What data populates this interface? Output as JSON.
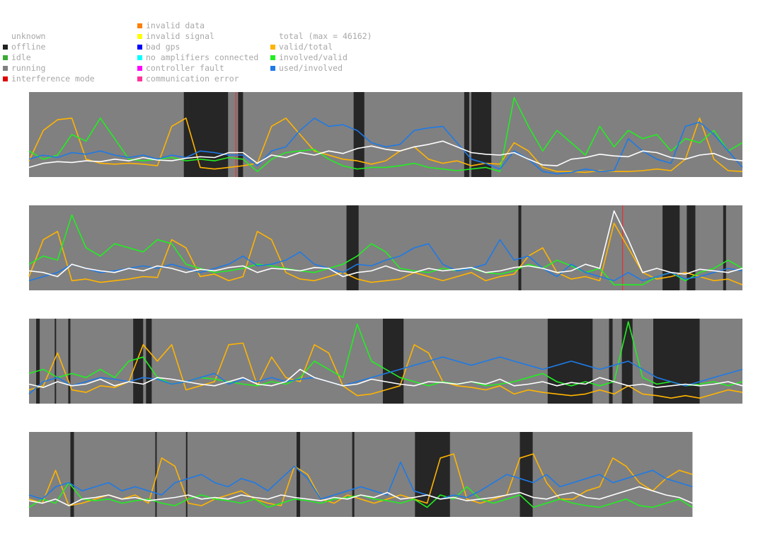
{
  "legend": {
    "status": [
      {
        "label": "unknown",
        "color": "none"
      },
      {
        "label": "offline",
        "color": "#222222"
      },
      {
        "label": "idle",
        "color": "#3aaa35"
      },
      {
        "label": "running",
        "color": "#808080"
      },
      {
        "label": "interference mode",
        "color": "#e00000"
      }
    ],
    "errors": [
      {
        "label": "invalid data",
        "color": "#ff7f00"
      },
      {
        "label": "invalid signal",
        "color": "#ffff00"
      },
      {
        "label": "bad gps",
        "color": "#0000ff"
      },
      {
        "label": "no amplifiers connected",
        "color": "#00ffff"
      },
      {
        "label": "controller fault",
        "color": "#ff00ff"
      },
      {
        "label": "communication error",
        "color": "#ff3399"
      }
    ],
    "metrics": [
      {
        "label": "total (max = 46162)",
        "color": "none"
      },
      {
        "label": "valid/total",
        "color": "#ffb400"
      },
      {
        "label": "involved/valid",
        "color": "#22ee22"
      },
      {
        "label": "used/involved",
        "color": "#1e7ae6"
      }
    ]
  },
  "chart_data": {
    "type": "line",
    "series": [
      {
        "name": "total (max = 46162)",
        "color": "#ffffff"
      },
      {
        "name": "valid/total",
        "color": "#ffb400"
      },
      {
        "name": "involved/valid",
        "color": "#22ee22"
      },
      {
        "name": "used/involved",
        "color": "#1e7ae6"
      }
    ],
    "state_colors": {
      "running": "#808080",
      "offline": "#262626",
      "interference": "#ff2020"
    },
    "rows": [
      {
        "span": [
          0,
          1
        ],
        "offline": [
          [
            0.217,
            0.279
          ],
          [
            0.293,
            0.3
          ],
          [
            0.455,
            0.47
          ],
          [
            0.61,
            0.617
          ],
          [
            0.62,
            0.648
          ]
        ],
        "interference": [
          0.29
        ],
        "series": {
          "total": [
            0.1,
            0.15,
            0.17,
            0.16,
            0.18,
            0.17,
            0.2,
            0.18,
            0.22,
            0.19,
            0.18,
            0.21,
            0.23,
            0.22,
            0.28,
            0.28,
            0.15,
            0.25,
            0.22,
            0.28,
            0.25,
            0.3,
            0.27,
            0.33,
            0.36,
            0.32,
            0.3,
            0.35,
            0.38,
            0.42,
            0.35,
            0.28,
            0.26,
            0.25,
            0.28,
            0.2,
            0.13,
            0.12,
            0.2,
            0.22,
            0.26,
            0.24,
            0.23,
            0.3,
            0.28,
            0.22,
            0.2,
            0.25,
            0.27,
            0.2,
            0.18
          ],
          "valid": [
            0.18,
            0.55,
            0.68,
            0.7,
            0.2,
            0.15,
            0.14,
            0.15,
            0.14,
            0.12,
            0.6,
            0.7,
            0.1,
            0.08,
            0.1,
            0.12,
            0.15,
            0.6,
            0.7,
            0.5,
            0.3,
            0.25,
            0.2,
            0.18,
            0.14,
            0.18,
            0.3,
            0.35,
            0.2,
            0.15,
            0.18,
            0.12,
            0.15,
            0.14,
            0.4,
            0.3,
            0.1,
            0.05,
            0.05,
            0.04,
            0.06,
            0.05,
            0.05,
            0.06,
            0.08,
            0.06,
            0.2,
            0.7,
            0.2,
            0.06,
            0.05
          ],
          "involved": [
            0.3,
            0.2,
            0.25,
            0.5,
            0.42,
            0.7,
            0.45,
            0.2,
            0.18,
            0.2,
            0.22,
            0.18,
            0.2,
            0.18,
            0.22,
            0.2,
            0.05,
            0.2,
            0.28,
            0.3,
            0.32,
            0.2,
            0.12,
            0.08,
            0.1,
            0.1,
            0.12,
            0.15,
            0.1,
            0.08,
            0.06,
            0.08,
            0.1,
            0.05,
            0.95,
            0.6,
            0.3,
            0.55,
            0.4,
            0.25,
            0.6,
            0.35,
            0.55,
            0.45,
            0.5,
            0.3,
            0.45,
            0.4,
            0.55,
            0.3,
            0.4
          ],
          "used": [
            0.2,
            0.25,
            0.22,
            0.28,
            0.26,
            0.3,
            0.25,
            0.22,
            0.25,
            0.2,
            0.25,
            0.22,
            0.3,
            0.28,
            0.25,
            0.25,
            0.12,
            0.3,
            0.35,
            0.55,
            0.7,
            0.6,
            0.62,
            0.55,
            0.4,
            0.35,
            0.38,
            0.55,
            0.58,
            0.6,
            0.4,
            0.2,
            0.15,
            0.08,
            0.3,
            0.2,
            0.05,
            0.02,
            0.04,
            0.08,
            0.05,
            0.06,
            0.45,
            0.3,
            0.2,
            0.15,
            0.6,
            0.65,
            0.5,
            0.3,
            0.1
          ]
        }
      },
      {
        "span": [
          0,
          1
        ],
        "offline": [
          [
            0.445,
            0.462
          ],
          [
            0.686,
            0.69
          ],
          [
            0.888,
            0.912
          ],
          [
            0.922,
            0.934
          ],
          [
            0.973,
            0.977
          ]
        ],
        "interference": [
          0.832
        ],
        "series": {
          "total": [
            0.22,
            0.2,
            0.15,
            0.3,
            0.25,
            0.22,
            0.2,
            0.25,
            0.22,
            0.28,
            0.25,
            0.2,
            0.24,
            0.22,
            0.26,
            0.28,
            0.2,
            0.25,
            0.24,
            0.22,
            0.26,
            0.25,
            0.15,
            0.2,
            0.22,
            0.28,
            0.22,
            0.2,
            0.25,
            0.22,
            0.24,
            0.26,
            0.2,
            0.22,
            0.26,
            0.28,
            0.25,
            0.2,
            0.22,
            0.3,
            0.25,
            0.95,
            0.6,
            0.2,
            0.25,
            0.2,
            0.18,
            0.24,
            0.22,
            0.2,
            0.25
          ],
          "valid": [
            0.15,
            0.6,
            0.7,
            0.1,
            0.12,
            0.08,
            0.1,
            0.12,
            0.15,
            0.14,
            0.6,
            0.5,
            0.15,
            0.18,
            0.1,
            0.15,
            0.7,
            0.6,
            0.2,
            0.12,
            0.1,
            0.15,
            0.2,
            0.12,
            0.08,
            0.1,
            0.12,
            0.2,
            0.15,
            0.1,
            0.15,
            0.2,
            0.1,
            0.15,
            0.18,
            0.4,
            0.5,
            0.2,
            0.12,
            0.15,
            0.1,
            0.8,
            0.5,
            0.2,
            0.12,
            0.15,
            0.2,
            0.15,
            0.1,
            0.12,
            0.05
          ],
          "involved": [
            0.3,
            0.4,
            0.35,
            0.9,
            0.5,
            0.4,
            0.55,
            0.5,
            0.45,
            0.6,
            0.55,
            0.3,
            0.25,
            0.2,
            0.22,
            0.25,
            0.3,
            0.28,
            0.25,
            0.22,
            0.2,
            0.25,
            0.3,
            0.4,
            0.55,
            0.45,
            0.25,
            0.22,
            0.2,
            0.25,
            0.22,
            0.25,
            0.2,
            0.18,
            0.22,
            0.3,
            0.25,
            0.35,
            0.28,
            0.2,
            0.25,
            0.05,
            0.05,
            0.05,
            0.15,
            0.2,
            0.1,
            0.2,
            0.25,
            0.35,
            0.25
          ],
          "used": [
            0.1,
            0.15,
            0.2,
            0.3,
            0.25,
            0.2,
            0.22,
            0.25,
            0.28,
            0.25,
            0.3,
            0.25,
            0.2,
            0.25,
            0.3,
            0.4,
            0.28,
            0.3,
            0.35,
            0.45,
            0.3,
            0.25,
            0.2,
            0.3,
            0.28,
            0.35,
            0.4,
            0.5,
            0.55,
            0.3,
            0.22,
            0.25,
            0.3,
            0.6,
            0.35,
            0.4,
            0.25,
            0.15,
            0.3,
            0.2,
            0.15,
            0.1,
            0.2,
            0.1,
            0.15,
            0.2,
            0.12,
            0.15,
            0.2,
            0.25,
            0.22
          ]
        }
      },
      {
        "span": [
          0,
          1
        ],
        "offline": [
          [
            0.01,
            0.015
          ],
          [
            0.036,
            0.038
          ],
          [
            0.055,
            0.058
          ],
          [
            0.146,
            0.16
          ],
          [
            0.164,
            0.172
          ],
          [
            0.496,
            0.525
          ],
          [
            0.727,
            0.79
          ],
          [
            0.813,
            0.818
          ],
          [
            0.831,
            0.846
          ],
          [
            0.875,
            0.882
          ],
          [
            0.877,
            0.94
          ]
        ],
        "interference": [],
        "series": {
          "total": [
            0.22,
            0.18,
            0.25,
            0.2,
            0.22,
            0.28,
            0.2,
            0.25,
            0.22,
            0.3,
            0.28,
            0.25,
            0.22,
            0.2,
            0.25,
            0.3,
            0.22,
            0.2,
            0.25,
            0.4,
            0.3,
            0.25,
            0.2,
            0.22,
            0.28,
            0.25,
            0.22,
            0.2,
            0.25,
            0.24,
            0.22,
            0.25,
            0.22,
            0.28,
            0.2,
            0.22,
            0.25,
            0.2,
            0.24,
            0.22,
            0.3,
            0.25,
            0.2,
            0.22,
            0.18,
            0.2,
            0.22,
            0.2,
            0.22,
            0.25,
            0.2
          ],
          "valid": [
            0.15,
            0.2,
            0.6,
            0.15,
            0.12,
            0.2,
            0.18,
            0.25,
            0.7,
            0.5,
            0.7,
            0.15,
            0.2,
            0.25,
            0.7,
            0.72,
            0.2,
            0.55,
            0.3,
            0.25,
            0.7,
            0.6,
            0.2,
            0.08,
            0.1,
            0.15,
            0.2,
            0.7,
            0.6,
            0.25,
            0.2,
            0.18,
            0.15,
            0.2,
            0.1,
            0.15,
            0.12,
            0.1,
            0.08,
            0.1,
            0.15,
            0.1,
            0.2,
            0.1,
            0.08,
            0.05,
            0.08,
            0.05,
            0.1,
            0.15,
            0.12
          ],
          "involved": [
            0.35,
            0.4,
            0.3,
            0.35,
            0.3,
            0.4,
            0.3,
            0.5,
            0.55,
            0.3,
            0.22,
            0.25,
            0.3,
            0.28,
            0.25,
            0.22,
            0.2,
            0.25,
            0.22,
            0.3,
            0.5,
            0.4,
            0.3,
            0.95,
            0.5,
            0.4,
            0.3,
            0.25,
            0.2,
            0.25,
            0.22,
            0.25,
            0.2,
            0.22,
            0.25,
            0.3,
            0.35,
            0.25,
            0.2,
            0.25,
            0.2,
            0.25,
            0.98,
            0.3,
            0.22,
            0.25,
            0.2,
            0.22,
            0.25,
            0.2,
            0.25
          ],
          "used": [
            0.1,
            0.25,
            0.3,
            0.2,
            0.25,
            0.3,
            0.28,
            0.25,
            0.3,
            0.28,
            0.22,
            0.25,
            0.3,
            0.35,
            0.22,
            0.28,
            0.25,
            0.3,
            0.25,
            0.28,
            0.3,
            0.25,
            0.2,
            0.25,
            0.3,
            0.35,
            0.4,
            0.45,
            0.5,
            0.55,
            0.5,
            0.45,
            0.5,
            0.55,
            0.5,
            0.45,
            0.4,
            0.45,
            0.5,
            0.45,
            0.4,
            0.45,
            0.5,
            0.4,
            0.3,
            0.25,
            0.2,
            0.25,
            0.3,
            0.35,
            0.4
          ]
        }
      },
      {
        "span": [
          0,
          0.93
        ],
        "offline": [
          [
            0.058,
            0.063
          ],
          [
            0.177,
            0.179
          ],
          [
            0.22,
            0.222
          ],
          [
            0.375,
            0.38
          ],
          [
            0.453,
            0.456
          ],
          [
            0.541,
            0.59
          ],
          [
            0.688,
            0.706
          ]
        ],
        "interference": [],
        "series": {
          "total": [
            0.18,
            0.15,
            0.2,
            0.12,
            0.2,
            0.22,
            0.25,
            0.2,
            0.22,
            0.18,
            0.2,
            0.22,
            0.25,
            0.2,
            0.22,
            0.2,
            0.25,
            0.22,
            0.2,
            0.25,
            0.22,
            0.2,
            0.18,
            0.22,
            0.2,
            0.25,
            0.22,
            0.28,
            0.2,
            0.22,
            0.25,
            0.2,
            0.22,
            0.18,
            0.2,
            0.22,
            0.25,
            0.28,
            0.22,
            0.2,
            0.25,
            0.28,
            0.22,
            0.2,
            0.25,
            0.3,
            0.35,
            0.3,
            0.25,
            0.22,
            0.15
          ],
          "valid": [
            0.2,
            0.15,
            0.55,
            0.12,
            0.15,
            0.2,
            0.25,
            0.2,
            0.25,
            0.15,
            0.7,
            0.6,
            0.15,
            0.12,
            0.2,
            0.25,
            0.3,
            0.2,
            0.15,
            0.12,
            0.6,
            0.5,
            0.2,
            0.15,
            0.25,
            0.2,
            0.15,
            0.2,
            0.25,
            0.2,
            0.15,
            0.7,
            0.75,
            0.2,
            0.15,
            0.2,
            0.25,
            0.7,
            0.75,
            0.4,
            0.2,
            0.2,
            0.3,
            0.35,
            0.7,
            0.6,
            0.4,
            0.3,
            0.45,
            0.55,
            0.5
          ],
          "involved": [
            0.1,
            0.2,
            0.15,
            0.4,
            0.2,
            0.18,
            0.2,
            0.15,
            0.18,
            0.2,
            0.15,
            0.12,
            0.2,
            0.25,
            0.2,
            0.18,
            0.15,
            0.2,
            0.1,
            0.15,
            0.2,
            0.18,
            0.15,
            0.2,
            0.22,
            0.25,
            0.2,
            0.18,
            0.15,
            0.2,
            0.1,
            0.25,
            0.2,
            0.35,
            0.2,
            0.15,
            0.2,
            0.25,
            0.1,
            0.15,
            0.2,
            0.15,
            0.12,
            0.1,
            0.15,
            0.2,
            0.12,
            0.1,
            0.15,
            0.2,
            0.1
          ],
          "used": [
            0.25,
            0.2,
            0.35,
            0.4,
            0.3,
            0.35,
            0.4,
            0.3,
            0.35,
            0.3,
            0.25,
            0.4,
            0.45,
            0.5,
            0.4,
            0.35,
            0.45,
            0.4,
            0.3,
            0.45,
            0.6,
            0.45,
            0.2,
            0.25,
            0.3,
            0.35,
            0.3,
            0.25,
            0.65,
            0.3,
            0.25,
            0.2,
            0.25,
            0.22,
            0.3,
            0.4,
            0.5,
            0.45,
            0.4,
            0.5,
            0.35,
            0.4,
            0.45,
            0.5,
            0.4,
            0.45,
            0.5,
            0.55,
            0.45,
            0.4,
            0.35
          ]
        }
      }
    ]
  }
}
